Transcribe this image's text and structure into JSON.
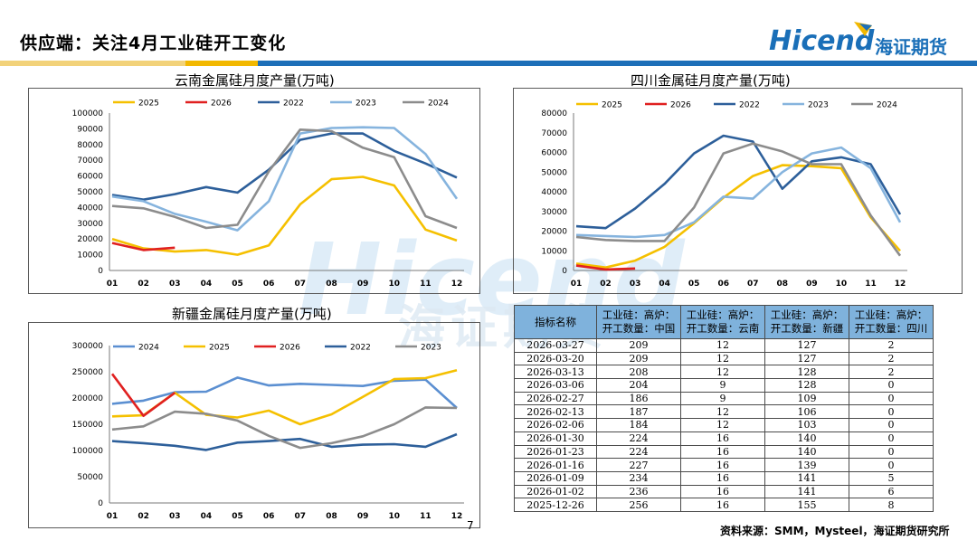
{
  "page": {
    "title": "供应端：关注4月工业硅开工变化",
    "logo_en": "Hicend",
    "logo_cn": "海证期货",
    "source": "资料来源：SMM，Mysteel，海证期货研究所",
    "page_number": "7",
    "colors": {
      "brand": "#1a6fb8",
      "bar_yellow": "#f2b800",
      "bar_blue": "#1d6fb8",
      "header_fill": "#7fb2dc"
    }
  },
  "chart_data": [
    {
      "type": "line",
      "title": "云南金属硅月度产量(万吨)",
      "categories": [
        "01",
        "02",
        "03",
        "04",
        "05",
        "06",
        "07",
        "08",
        "09",
        "10",
        "11",
        "12"
      ],
      "ylim": [
        0,
        100000
      ],
      "yticks": [
        0,
        10000,
        20000,
        30000,
        40000,
        50000,
        60000,
        70000,
        80000,
        90000,
        100000
      ],
      "legend": "top",
      "series": [
        {
          "name": "2025",
          "color": "#f5c000",
          "values": [
            20000,
            14000,
            12000,
            13000,
            10000,
            16000,
            42000,
            58000,
            59500,
            54000,
            26000,
            19000
          ]
        },
        {
          "name": "2026",
          "color": "#e02020",
          "values": [
            17500,
            13000,
            14500,
            null,
            null,
            null,
            null,
            null,
            null,
            null,
            null,
            null
          ]
        },
        {
          "name": "2022",
          "color": "#2d5f9a",
          "values": [
            48000,
            45000,
            48500,
            53000,
            49500,
            64000,
            83000,
            87000,
            87000,
            76000,
            68000,
            59000
          ]
        },
        {
          "name": "2023",
          "color": "#86b4de",
          "values": [
            47000,
            44000,
            36000,
            31000,
            25500,
            44000,
            87000,
            90500,
            91000,
            90500,
            74000,
            45500
          ]
        },
        {
          "name": "2024",
          "color": "#8c8c8c",
          "values": [
            41000,
            39500,
            34000,
            27000,
            29000,
            63000,
            89500,
            88500,
            78000,
            72000,
            34500,
            27000
          ]
        }
      ]
    },
    {
      "type": "line",
      "title": "四川金属硅月度产量(万吨)",
      "categories": [
        "01",
        "02",
        "03",
        "04",
        "05",
        "06",
        "07",
        "08",
        "09",
        "10",
        "11",
        "12"
      ],
      "ylim": [
        0,
        80000
      ],
      "yticks": [
        0,
        10000,
        20000,
        30000,
        40000,
        50000,
        60000,
        70000,
        80000
      ],
      "legend": "top",
      "series": [
        {
          "name": "2025",
          "color": "#f5c000",
          "values": [
            3500,
            1500,
            5000,
            12000,
            24000,
            37000,
            48000,
            53500,
            53000,
            52000,
            27000,
            10000
          ]
        },
        {
          "name": "2026",
          "color": "#e02020",
          "values": [
            2500,
            500,
            1000,
            null,
            null,
            null,
            null,
            null,
            null,
            null,
            null,
            null
          ]
        },
        {
          "name": "2022",
          "color": "#2d5f9a",
          "values": [
            22500,
            21500,
            31500,
            44000,
            59500,
            68500,
            65500,
            41500,
            55500,
            57500,
            54000,
            28500
          ]
        },
        {
          "name": "2023",
          "color": "#86b4de",
          "values": [
            18000,
            17500,
            17000,
            18000,
            24500,
            37500,
            36500,
            50000,
            59500,
            62500,
            52000,
            24500
          ]
        },
        {
          "name": "2024",
          "color": "#8c8c8c",
          "values": [
            17000,
            15500,
            15000,
            15000,
            32000,
            59500,
            64500,
            60500,
            54000,
            54000,
            28000,
            7500
          ]
        }
      ]
    },
    {
      "type": "line",
      "title": "新疆金属硅月度产量(万吨)",
      "categories": [
        "01",
        "02",
        "03",
        "04",
        "05",
        "06",
        "07",
        "08",
        "09",
        "10",
        "11",
        "12"
      ],
      "ylim": [
        0,
        300000
      ],
      "yticks": [
        0,
        50000,
        100000,
        150000,
        200000,
        250000,
        300000
      ],
      "legend": "top",
      "series": [
        {
          "name": "2024",
          "color": "#5b8fd1",
          "values": [
            189000,
            195000,
            211000,
            212000,
            239000,
            224000,
            227000,
            225000,
            223000,
            233000,
            235000,
            181000
          ]
        },
        {
          "name": "2025",
          "color": "#f5c000",
          "values": [
            165000,
            167000,
            210000,
            168000,
            163000,
            176000,
            150000,
            169000,
            202000,
            236000,
            238000,
            253000
          ]
        },
        {
          "name": "2026",
          "color": "#e02020",
          "values": [
            246000,
            166000,
            210000,
            null,
            null,
            null,
            null,
            null,
            null,
            null,
            null,
            null
          ]
        },
        {
          "name": "2022",
          "color": "#2d5f9a",
          "values": [
            118000,
            114000,
            109000,
            101000,
            115000,
            118000,
            122000,
            107000,
            111000,
            112000,
            107000,
            131000
          ]
        },
        {
          "name": "2023",
          "color": "#8c8c8c",
          "values": [
            140000,
            146000,
            174000,
            170000,
            157000,
            128000,
            105000,
            114000,
            127000,
            150000,
            182000,
            181000
          ]
        }
      ]
    }
  ],
  "table": {
    "headers": [
      [
        "指标名称"
      ],
      [
        "工业硅：高炉：",
        "开工数量：中国"
      ],
      [
        "工业硅：高炉：",
        "开工数量：云南"
      ],
      [
        "工业硅：高炉：",
        "开工数量：新疆"
      ],
      [
        "工业硅：高炉：",
        "开工数量：四川"
      ]
    ],
    "rows": [
      [
        "2026-03-27",
        "209",
        "12",
        "127",
        "2"
      ],
      [
        "2026-03-20",
        "209",
        "12",
        "127",
        "2"
      ],
      [
        "2026-03-13",
        "208",
        "12",
        "128",
        "2"
      ],
      [
        "2026-03-06",
        "204",
        "9",
        "128",
        "0"
      ],
      [
        "2026-02-27",
        "186",
        "9",
        "109",
        "0"
      ],
      [
        "2026-02-13",
        "187",
        "12",
        "106",
        "0"
      ],
      [
        "2026-02-06",
        "184",
        "12",
        "103",
        "0"
      ],
      [
        "2026-01-30",
        "224",
        "16",
        "140",
        "0"
      ],
      [
        "2026-01-23",
        "224",
        "16",
        "140",
        "0"
      ],
      [
        "2026-01-16",
        "227",
        "16",
        "139",
        "0"
      ],
      [
        "2026-01-09",
        "234",
        "16",
        "141",
        "5"
      ],
      [
        "2026-01-02",
        "236",
        "16",
        "141",
        "6"
      ],
      [
        "2025-12-26",
        "256",
        "16",
        "155",
        "8"
      ]
    ]
  }
}
